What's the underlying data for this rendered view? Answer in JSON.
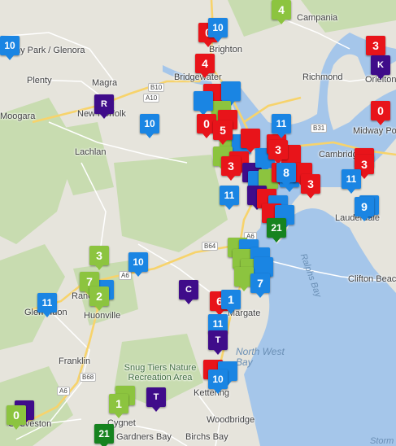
{
  "map": {
    "colors": {
      "land": "#e6e4dc",
      "forest": "#c8dcb0",
      "water": "#a5c6ea",
      "road_major": "#f7d36b",
      "road_minor": "#ffffff",
      "marker_red": "#e8141a",
      "marker_blue": "#1a85e3",
      "marker_light_green": "#8cc43f",
      "marker_dark_green": "#16831f",
      "marker_purple": "#3f0c8a"
    },
    "place_labels": [
      "Campania",
      "Brighton",
      "Richmond",
      "Orielton",
      "Midway Point",
      "Cambridge",
      "Lauderdale",
      "Ralphs Bay",
      "Clifton Beach",
      "North West Bay",
      "Kettering",
      "Woodbridge",
      "Birchs Bay",
      "Gardners Bay",
      "Cygnet",
      "Geeveston",
      "Franklin",
      "Huonville",
      "Ranelagh",
      "Glen Huon",
      "Lachlan",
      "New Norfolk",
      "Magra",
      "Plenty",
      "Moogara",
      "Bridgewater",
      "Margate",
      "Snug Tiers Nature Recreation Area",
      "Bushy Park / Glenora",
      "Storm Bay"
    ],
    "road_shields": [
      "B10",
      "A10",
      "B31",
      "A6",
      "B64",
      "A6",
      "B68",
      "A6"
    ],
    "markers": [
      {
        "label": "4",
        "type": "light-green"
      },
      {
        "label": "10",
        "type": "blue"
      },
      {
        "label": "0",
        "type": "red"
      },
      {
        "label": "10",
        "type": "blue"
      },
      {
        "label": "4",
        "type": "red"
      },
      {
        "label": "3",
        "type": "red"
      },
      {
        "label": "K",
        "type": "purple"
      },
      {
        "label": "0",
        "type": "red"
      },
      {
        "label": "R",
        "type": "purple"
      },
      {
        "label": "10",
        "type": "blue"
      },
      {
        "label": "0",
        "type": "red"
      },
      {
        "label": "5",
        "type": "red"
      },
      {
        "label": "11",
        "type": "blue"
      },
      {
        "label": "3",
        "type": "red"
      },
      {
        "label": "8",
        "type": "blue"
      },
      {
        "label": "3",
        "type": "red"
      },
      {
        "label": "3",
        "type": "red"
      },
      {
        "label": "11",
        "type": "blue"
      },
      {
        "label": "3",
        "type": "red"
      },
      {
        "label": "11",
        "type": "blue"
      },
      {
        "label": "9",
        "type": "blue"
      },
      {
        "label": "21",
        "type": "dark-green"
      },
      {
        "label": "3",
        "type": "light-green"
      },
      {
        "label": "10",
        "type": "blue"
      },
      {
        "label": "7",
        "type": "light-green"
      },
      {
        "label": "2",
        "type": "light-green"
      },
      {
        "label": "11",
        "type": "blue"
      },
      {
        "label": "C",
        "type": "purple"
      },
      {
        "label": "6",
        "type": "red"
      },
      {
        "label": "1",
        "type": "blue"
      },
      {
        "label": "7",
        "type": "blue"
      },
      {
        "label": "11",
        "type": "blue"
      },
      {
        "label": "T",
        "type": "purple"
      },
      {
        "label": "10",
        "type": "blue"
      },
      {
        "label": "1",
        "type": "light-green"
      },
      {
        "label": "T",
        "type": "purple"
      },
      {
        "label": "0",
        "type": "light-green"
      },
      {
        "label": "21",
        "type": "dark-green"
      }
    ]
  }
}
